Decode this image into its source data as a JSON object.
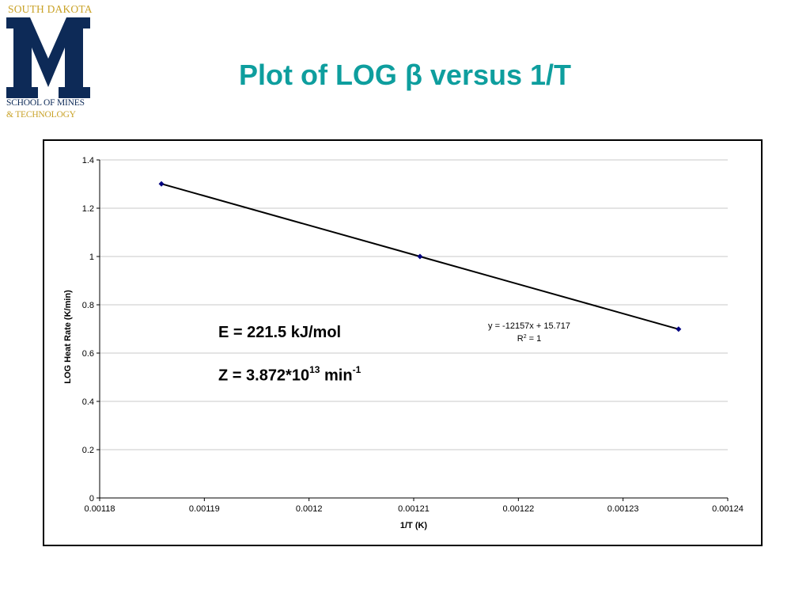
{
  "logo": {
    "top_text": "SOUTH DAKOTA",
    "letter": "M",
    "line1": "SCHOOL OF MINES",
    "line2": "& TECHNOLOGY",
    "colors": {
      "navy": "#0d2a57",
      "gold": "#c9a227"
    }
  },
  "title": "Plot of LOG β versus 1/T",
  "annotations": {
    "energy": "E = 221.5 kJ/mol",
    "z_prefix": "Z = 3.872*10",
    "z_exp": "13",
    "z_unit": " min",
    "z_unit_exp": "-1"
  },
  "trendline": {
    "equation": "y = -12157x + 15.717",
    "r2_label": "R",
    "r2_exp": "2",
    "r2_value": " = 1"
  },
  "chart_data": {
    "type": "scatter",
    "title": "",
    "xlabel": "1/T (K)",
    "ylabel": "LOG Heat Rate (K/min)",
    "xlim": [
      0.00118,
      0.00124
    ],
    "ylim": [
      0,
      1.4
    ],
    "x_ticks": [
      "0.00118",
      "0.00119",
      "0.0012",
      "0.00121",
      "0.00122",
      "0.00123",
      "0.00124"
    ],
    "x_tick_values": [
      0.00118,
      0.00119,
      0.0012,
      0.00121,
      0.00122,
      0.00123,
      0.00124
    ],
    "y_ticks": [
      "0",
      "0.2",
      "0.4",
      "0.6",
      "0.8",
      "1",
      "1.2",
      "1.4"
    ],
    "y_tick_values": [
      0,
      0.2,
      0.4,
      0.6,
      0.8,
      1,
      1.2,
      1.4
    ],
    "grid": "horizontal",
    "series": [
      {
        "x": [
          0.0011859,
          0.0012106,
          0.0012353
        ],
        "y": [
          1.301,
          1.0,
          0.699
        ],
        "color": "#000080",
        "marker": "diamond",
        "line": true
      }
    ]
  }
}
